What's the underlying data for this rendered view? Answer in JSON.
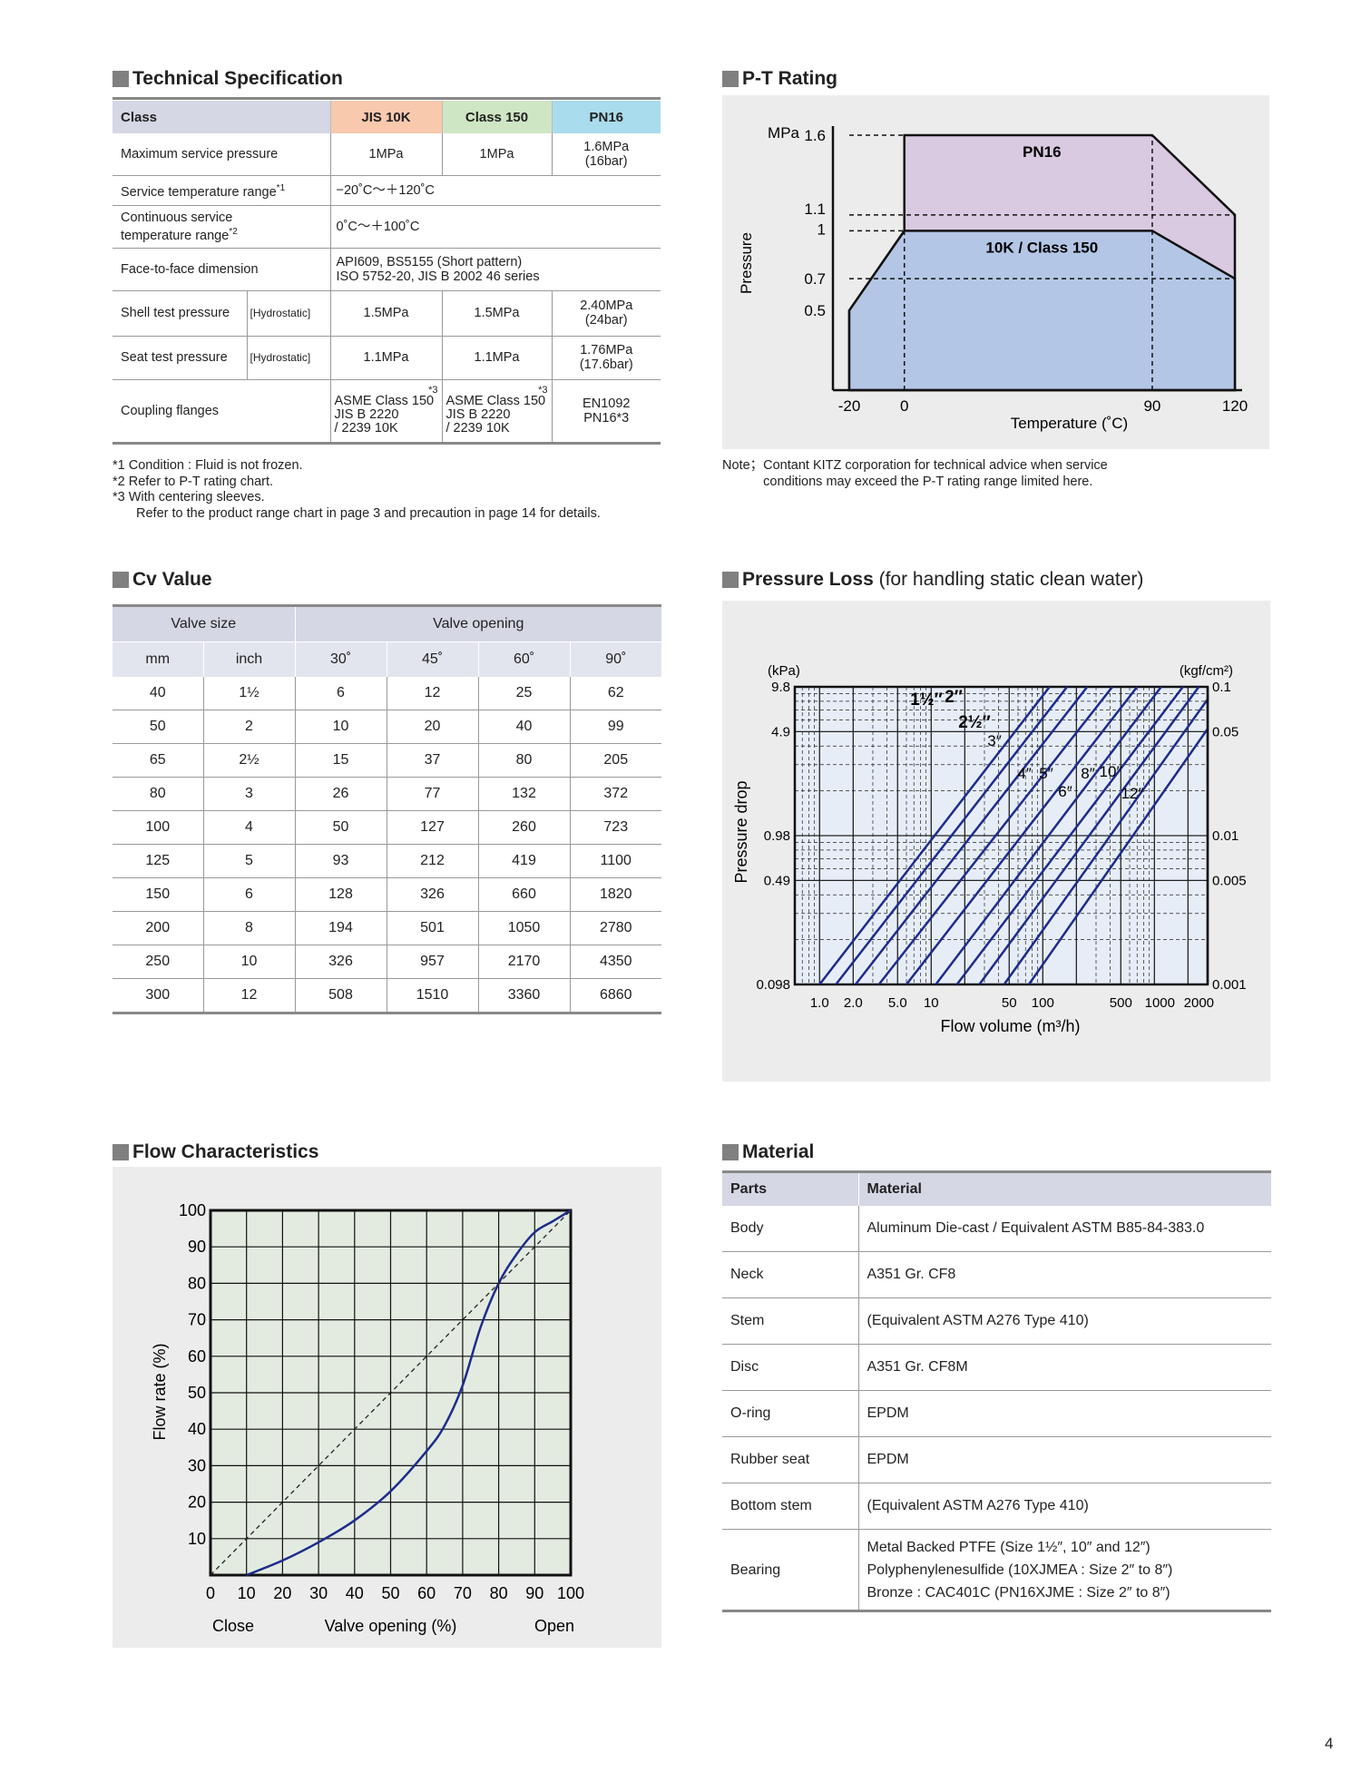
{
  "spec": {
    "title": "Technical Specification",
    "headers": [
      "Class",
      "JIS 10K",
      "Class 150",
      "PN16"
    ],
    "header_colors": [
      "#d5d7e4",
      "#f9c9ae",
      "#cfe6c4",
      "#a9dcec"
    ],
    "rows": {
      "max_pressure": {
        "label": "Maximum service pressure",
        "jis": "1MPa",
        "cls": "1MPa",
        "pn_1": "1.6MPa",
        "pn_2": "(16bar)"
      },
      "temp_range": {
        "label": "Service temperature range",
        "mark": "*1",
        "value": "−20˚C～＋120˚C"
      },
      "cont_temp": {
        "label_1": "Continuous service",
        "label_2": "temperature range",
        "mark": "*2",
        "value": "0˚C～＋100˚C"
      },
      "face": {
        "label": "Face-to-face dimension",
        "value_1": "API609, BS5155 (Short pattern)",
        "value_2": "ISO 5752-20, JIS B 2002 46 series"
      },
      "shell": {
        "label": "Shell test pressure",
        "tag": "[Hydrostatic]",
        "jis": "1.5MPa",
        "cls": "1.5MPa",
        "pn_1": "2.40MPa",
        "pn_2": "(24bar)"
      },
      "seat": {
        "label": "Seat test pressure",
        "tag": "[Hydrostatic]",
        "jis": "1.1MPa",
        "cls": "1.1MPa",
        "pn_1": "1.76MPa",
        "pn_2": "(17.6bar)"
      },
      "coupling": {
        "label": "Coupling flanges",
        "mark": "*3",
        "jis_1": "ASME Class 150",
        "jis_2": "JIS B 2220",
        "jis_3": "/ 2239 10K",
        "cls_1": "ASME Class 150",
        "cls_2": "JIS B 2220",
        "cls_3": "/ 2239 10K",
        "pn_1": "EN1092",
        "pn_2": "PN16*3"
      }
    },
    "notes": [
      "*1 Condition : Fluid is not frozen.",
      "*2 Refer to P-T rating chart.",
      "*3 With centering sleeves.",
      "Refer to the product range chart in page 3 and precaution in page 14 for details."
    ]
  },
  "pt": {
    "title": "P-T Rating",
    "note_label": "Note；",
    "note_1": "Contant KITZ corporation for technical advice when service",
    "note_2": "conditions may exceed the P-T rating range limited here."
  },
  "cv": {
    "title": "Cv Value",
    "group_headers": [
      "Valve size",
      "Valve opening"
    ],
    "sub_headers": [
      "mm",
      "inch",
      "30˚",
      "45˚",
      "60˚",
      "90˚"
    ],
    "rows": [
      [
        "40",
        "1½",
        "6",
        "12",
        "25",
        "62"
      ],
      [
        "50",
        "2",
        "10",
        "20",
        "40",
        "99"
      ],
      [
        "65",
        "2½",
        "15",
        "37",
        "80",
        "205"
      ],
      [
        "80",
        "3",
        "26",
        "77",
        "132",
        "372"
      ],
      [
        "100",
        "4",
        "50",
        "127",
        "260",
        "723"
      ],
      [
        "125",
        "5",
        "93",
        "212",
        "419",
        "1100"
      ],
      [
        "150",
        "6",
        "128",
        "326",
        "660",
        "1820"
      ],
      [
        "200",
        "8",
        "194",
        "501",
        "1050",
        "2780"
      ],
      [
        "250",
        "10",
        "326",
        "957",
        "2170",
        "4350"
      ],
      [
        "300",
        "12",
        "508",
        "1510",
        "3360",
        "6860"
      ]
    ]
  },
  "ploss": {
    "title": "Pressure Loss",
    "subtitle": "(for handling static clean water)"
  },
  "flow": {
    "title": "Flow Characteristics"
  },
  "material": {
    "title": "Material",
    "headers": [
      "Parts",
      "Material"
    ],
    "rows": [
      [
        "Body",
        "Aluminum Die-cast / Equivalent ASTM B85-84-383.0"
      ],
      [
        "Neck",
        "A351 Gr. CF8"
      ],
      [
        "Stem",
        "(Equivalent ASTM A276 Type 410)"
      ],
      [
        "Disc",
        "A351 Gr. CF8M"
      ],
      [
        "O-ring",
        "EPDM"
      ],
      [
        "Rubber seat",
        "EPDM"
      ],
      [
        "Bottom stem",
        "(Equivalent ASTM A276 Type 410)"
      ]
    ],
    "bearing": {
      "part": "Bearing",
      "line_1": "Metal Backed PTFE (Size 1½″, 10″ and 12″)",
      "line_2": "Polyphenylenesulfide (10XJMEA : Size 2″ to 8″)",
      "line_3": "Bronze : CAC401C (PN16XJME : Size 2″ to 8″)"
    }
  },
  "page_number": "4",
  "chart_data": [
    {
      "type": "area",
      "ylabel": "Pressure",
      "yunit": "MPa",
      "xlabel": "Temperature (˚C)",
      "x_ticks": [
        "-20",
        "0",
        "90",
        "120"
      ],
      "y_ticks": [
        "0.5",
        "0.7",
        "1",
        "1.1",
        "1.6"
      ],
      "xlim": [
        -20,
        120
      ],
      "ylim": [
        0,
        1.6
      ],
      "series": [
        {
          "name": "PN16",
          "color": "#d9c9e1",
          "points": [
            [
              -20,
              0.5
            ],
            [
              0,
              1.0
            ],
            [
              0,
              1.6
            ],
            [
              90,
              1.6
            ],
            [
              120,
              1.1
            ],
            [
              120,
              0
            ]
          ]
        },
        {
          "name": "10K / Class 150",
          "color": "#b4c6e6",
          "points": [
            [
              -20,
              0.5
            ],
            [
              0,
              1.0
            ],
            [
              90,
              1.0
            ],
            [
              120,
              0.7
            ],
            [
              120,
              0
            ]
          ]
        }
      ]
    },
    {
      "type": "line",
      "ylabel": "Pressure drop",
      "xlabel": "Flow volume (m³/h)",
      "y_unit_left": "(kPa)",
      "y_unit_right": "(kgf/cm²)",
      "x_scale": "log",
      "y_scale": "log",
      "x_ticks": [
        "1.0",
        "2.0",
        "5.0",
        "10",
        "50",
        "100",
        "500",
        "1000",
        "2000"
      ],
      "y_ticks_left": [
        "0.098",
        "0.49",
        "0.98",
        "4.9",
        "9.8"
      ],
      "y_ticks_right": [
        "0.001",
        "0.005",
        "0.01",
        "0.05",
        "0.1"
      ],
      "series_labels": [
        "1½″",
        "2″",
        "2½″",
        "3″",
        "4″",
        "5″",
        "6″",
        "8″",
        "10″",
        "12″"
      ],
      "series_x_start": [
        1.0,
        1.4,
        2.1,
        3.4,
        6.0,
        11,
        17,
        27,
        45,
        75
      ],
      "series_x_end": [
        115,
        165,
        250,
        420,
        700,
        1150,
        1800,
        2500,
        3600,
        5500
      ],
      "y_range_kpa": [
        0.098,
        9.8
      ]
    },
    {
      "type": "line",
      "ylabel": "Flow rate (%)",
      "xlabel": "Valve opening (%)",
      "x_end_labels": [
        "Close",
        "Open"
      ],
      "xlim": [
        0,
        100
      ],
      "ylim": [
        0,
        100
      ],
      "x_ticks": [
        "0",
        "10",
        "20",
        "30",
        "40",
        "50",
        "60",
        "70",
        "80",
        "90",
        "100"
      ],
      "y_ticks": [
        "10",
        "20",
        "30",
        "40",
        "50",
        "60",
        "70",
        "80",
        "90",
        "100"
      ],
      "series": [
        {
          "style": "solid",
          "color": "#1c2c8c",
          "points": [
            [
              10,
              0
            ],
            [
              20,
              4
            ],
            [
              30,
              9
            ],
            [
              40,
              15
            ],
            [
              50,
              23
            ],
            [
              60,
              34
            ],
            [
              65,
              41
            ],
            [
              70,
              52
            ],
            [
              75,
              68
            ],
            [
              80,
              80
            ],
            [
              85,
              88
            ],
            [
              90,
              94
            ],
            [
              95,
              97
            ],
            [
              100,
              100
            ]
          ]
        },
        {
          "style": "dashed",
          "color": "#222222",
          "points": [
            [
              0,
              0
            ],
            [
              100,
              100
            ]
          ]
        }
      ]
    }
  ]
}
